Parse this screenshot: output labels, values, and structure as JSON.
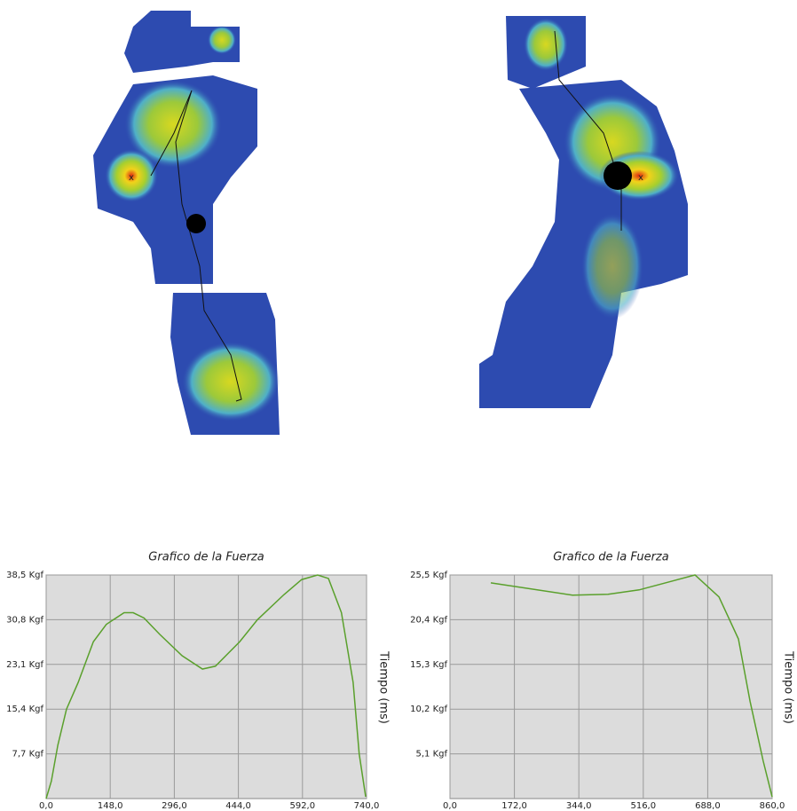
{
  "chart_data": [
    {
      "type": "line",
      "title": "Grafico de la Fuerza",
      "y_label": "Tiempo (ms)",
      "color": "#5aa02c",
      "grid": true,
      "x": [
        0,
        12,
        27,
        47,
        74,
        109,
        139,
        180,
        201,
        226,
        262,
        314,
        361,
        391,
        447,
        488,
        549,
        590,
        627,
        652,
        682,
        709,
        723,
        738
      ],
      "values": [
        0,
        3,
        9.2,
        15.4,
        20,
        27,
        30,
        32,
        32,
        31.1,
        28.3,
        24.6,
        22.3,
        22.8,
        27,
        30.8,
        35.1,
        37.7,
        38.5,
        37.9,
        32,
        20,
        7.7,
        0.3
      ],
      "xlim": [
        0,
        740
      ],
      "xticks": [
        {
          "value": 0,
          "label": "0,0"
        },
        {
          "value": 148,
          "label": "148,0"
        },
        {
          "value": 296,
          "label": "296,0"
        },
        {
          "value": 444,
          "label": "444,0"
        },
        {
          "value": 592,
          "label": "592,0"
        },
        {
          "value": 740,
          "label": "740,0"
        }
      ],
      "ylim": [
        0,
        38.5
      ],
      "yticks": [
        {
          "value": 7.7,
          "label": "7,7 Kgf"
        },
        {
          "value": 15.4,
          "label": "15,4 Kgf"
        },
        {
          "value": 23.1,
          "label": "23,1 Kgf"
        },
        {
          "value": 30.8,
          "label": "30,8 Kgf"
        },
        {
          "value": 38.5,
          "label": "38,5 Kgf"
        }
      ]
    },
    {
      "type": "line",
      "title": "Grafico de la Fuerza",
      "y_label": "Tiempo (ms)",
      "color": "#5aa02c",
      "grid": true,
      "x": [
        109,
        327,
        422,
        505,
        654,
        718,
        770,
        801,
        836,
        860
      ],
      "values": [
        24.6,
        23.2,
        23.3,
        23.8,
        25.5,
        23,
        18.2,
        11.1,
        4.3,
        0.2
      ],
      "xlim": [
        0,
        860
      ],
      "xticks": [
        {
          "value": 0,
          "label": "0,0"
        },
        {
          "value": 172,
          "label": "172,0"
        },
        {
          "value": 344,
          "label": "344,0"
        },
        {
          "value": 516,
          "label": "516,0"
        },
        {
          "value": 688,
          "label": "688,0"
        },
        {
          "value": 860,
          "label": "860,0"
        }
      ],
      "ylim": [
        0,
        25.5
      ],
      "yticks": [
        {
          "value": 5.1,
          "label": "5,1 Kgf"
        },
        {
          "value": 10.2,
          "label": "10,2 Kgf"
        },
        {
          "value": 15.3,
          "label": "15,3 Kgf"
        },
        {
          "value": 20.4,
          "label": "20,4 Kgf"
        },
        {
          "value": 25.5,
          "label": "25,5 Kgf"
        }
      ]
    }
  ]
}
